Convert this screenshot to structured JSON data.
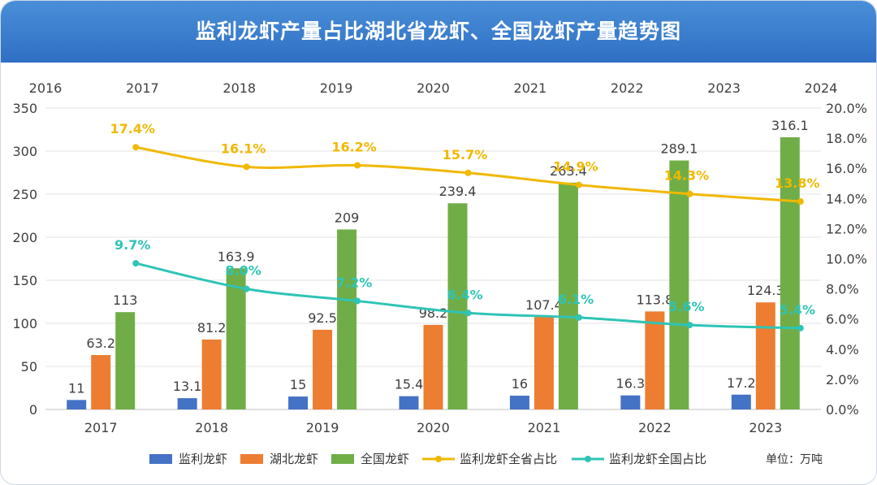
{
  "title": "监利龙虾产量占比湖北省龙虾、全国龙虾产量趋势图",
  "unit_label": "单位：万吨",
  "colors": {
    "title_bg": "#3a7fd0",
    "jianli": "#4472c4",
    "hubei": "#ed7d31",
    "national": "#70ad47",
    "prov_share": "#f0b800",
    "nat_share": "#2ec4b6"
  },
  "chart_data": {
    "type": "bar",
    "categories": [
      "2017",
      "2018",
      "2019",
      "2020",
      "2021",
      "2022",
      "2023"
    ],
    "top_axis_ticks": [
      "2016",
      "2017",
      "2018",
      "2019",
      "2020",
      "2021",
      "2022",
      "2023",
      "2024"
    ],
    "y_left": {
      "range": [
        0,
        350
      ],
      "ticks": [
        "0",
        "50",
        "100",
        "150",
        "200",
        "250",
        "300",
        "350"
      ]
    },
    "y_right": {
      "range": [
        0,
        20
      ],
      "ticks": [
        "0.0%",
        "2.0%",
        "4.0%",
        "6.0%",
        "8.0%",
        "10.0%",
        "12.0%",
        "14.0%",
        "16.0%",
        "18.0%",
        "20.0%"
      ]
    },
    "grid": true,
    "legend_position": "bottom",
    "bar_series": [
      {
        "name": "监利龙虾",
        "color": "#4472c4",
        "values": [
          11,
          13.1,
          15,
          15.4,
          16,
          16.3,
          17.2
        ],
        "labels": [
          "11",
          "13.1",
          "15",
          "15.4",
          "16",
          "16.3",
          "17.2"
        ]
      },
      {
        "name": "湖北龙虾",
        "color": "#ed7d31",
        "values": [
          63.2,
          81.2,
          92.5,
          98.2,
          107.4,
          113.8,
          124.3
        ],
        "labels": [
          "63.2",
          "81.2",
          "92.5",
          "98.2",
          "107.4",
          "113.8",
          "124.3"
        ]
      },
      {
        "name": "全国龙虾",
        "color": "#70ad47",
        "values": [
          113,
          163.9,
          209,
          239.4,
          263.4,
          289.1,
          316.1
        ],
        "labels": [
          "113",
          "163.9",
          "209",
          "239.4",
          "263.4",
          "289.1",
          "316.1"
        ]
      }
    ],
    "line_series": [
      {
        "name": "监利龙虾全省占比",
        "color": "#f0b800",
        "values": [
          17.4,
          16.1,
          16.2,
          15.7,
          14.9,
          14.3,
          13.8
        ],
        "labels": [
          "17.4%",
          "16.1%",
          "16.2%",
          "15.7%",
          "14.9%",
          "14.3%",
          "13.8%"
        ]
      },
      {
        "name": "监利龙虾全国占比",
        "color": "#2ec4b6",
        "values": [
          9.7,
          8.0,
          7.2,
          6.4,
          6.1,
          5.6,
          5.4
        ],
        "labels": [
          "9.7%",
          "8.0%",
          "7.2%",
          "6.4%",
          "6.1%",
          "5.6%",
          "5.4%"
        ]
      }
    ]
  }
}
